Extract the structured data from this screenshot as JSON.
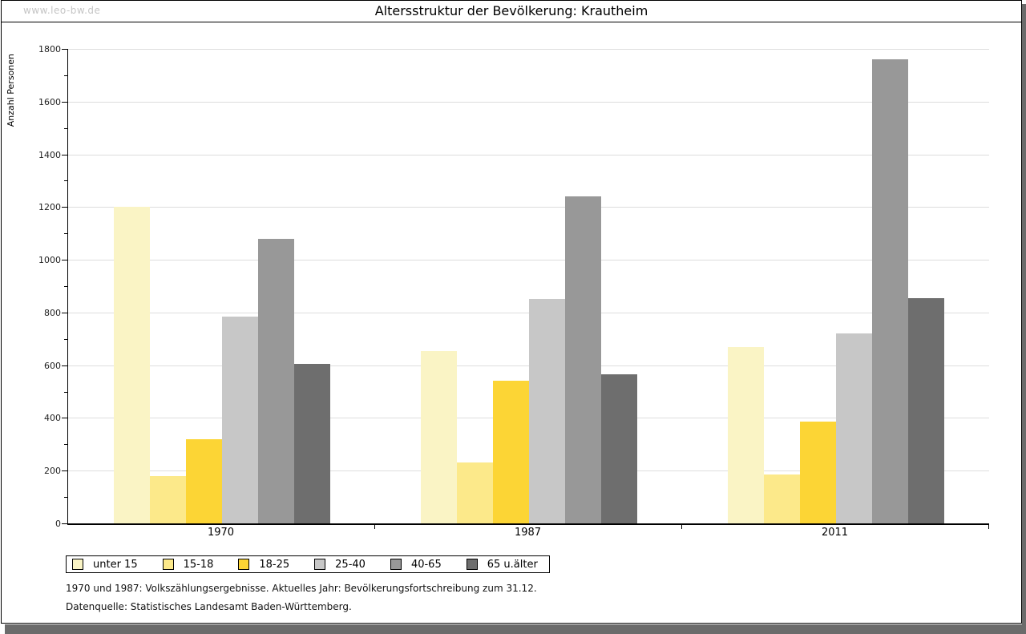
{
  "page": {
    "watermark": "www.leo-bw.de",
    "title": "Altersstruktur der Bevölkerung: Krautheim",
    "footnotes": {
      "line1": "1970 und 1987: Volkszählungsergebnisse. Aktuelles Jahr: Bevölkerungsfortschreibung zum 31.12.",
      "line2": "Datenquelle: Statistisches Landesamt Baden-Württemberg."
    }
  },
  "style_colors": {
    "gridline": "#DDDDDD",
    "axis": "#000000",
    "shadow": "#6B6B6B",
    "watermark_text": "#C5C5C5"
  },
  "chart_data": {
    "type": "bar",
    "title": "Altersstruktur der Bevölkerung: Krautheim",
    "xlabel": "",
    "ylabel": "Anzahl Personen",
    "ylim": [
      0,
      1800
    ],
    "ytick_step": 200,
    "yminor_step": 100,
    "grid": true,
    "legend_position": "bottom",
    "categories": [
      "1970",
      "1987",
      "2011"
    ],
    "series": [
      {
        "name": "unter 15",
        "color": "#FAF4C5",
        "values": [
          1200,
          655,
          670
        ]
      },
      {
        "name": "15-18",
        "color": "#FCE98A",
        "values": [
          180,
          230,
          185
        ]
      },
      {
        "name": "18-25",
        "color": "#FCD535",
        "values": [
          320,
          540,
          385
        ]
      },
      {
        "name": "25-40",
        "color": "#C7C7C7",
        "values": [
          785,
          850,
          720
        ]
      },
      {
        "name": "40-65",
        "color": "#989898",
        "values": [
          1080,
          1240,
          1760
        ]
      },
      {
        "name": "65 u.älter",
        "color": "#6E6E6E",
        "values": [
          605,
          565,
          855
        ]
      }
    ]
  }
}
